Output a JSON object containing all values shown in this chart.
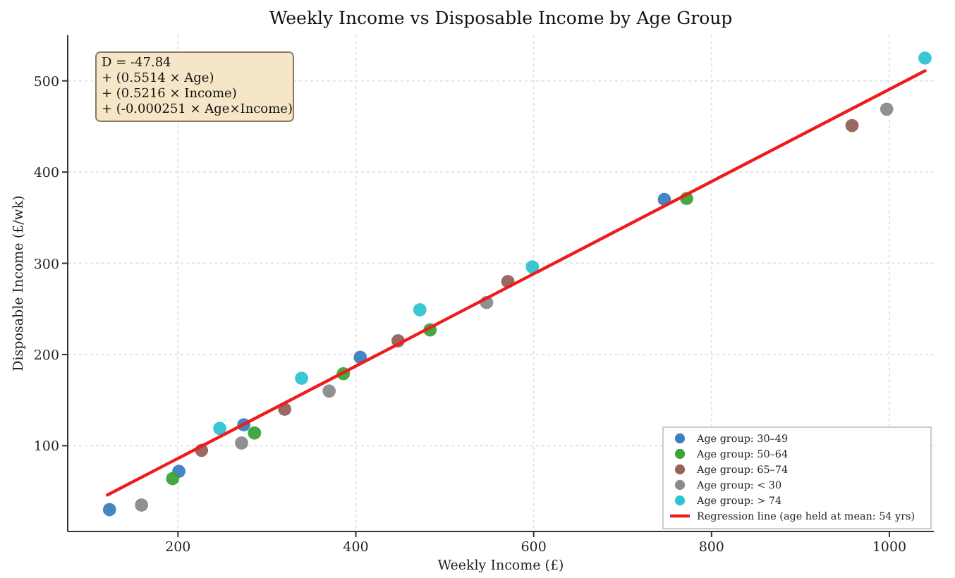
{
  "chart_data": {
    "type": "scatter",
    "title": "Weekly Income vs Disposable Income by Age Group",
    "xlabel": "Weekly Income (£)",
    "ylabel": "Disposable Income (£/wk)",
    "annotations": [
      "D = -47.84",
      "+ (0.5514 × Age)",
      "+ (0.5216 × Income)",
      "+ (-0.000251 × Age×Income)"
    ],
    "xlim": [
      76,
      1050
    ],
    "ylim": [
      6,
      550
    ],
    "xticks": [
      200,
      400,
      600,
      800,
      1000
    ],
    "yticks": [
      100,
      200,
      300,
      400,
      500
    ],
    "grid": true,
    "legend": "bottom right",
    "series": [
      {
        "name": "Age group: 30–49",
        "color": "#3b7fbf",
        "marker": "circle",
        "x": [
          123,
          201,
          274,
          405,
          747
        ],
        "values": [
          30,
          72,
          123,
          197,
          370
        ]
      },
      {
        "name": "Age group: 50–64",
        "color": "#3ca33a",
        "marker": "circle",
        "x": [
          194,
          286,
          386,
          483.5,
          772
        ],
        "values": [
          64,
          114,
          179,
          227,
          371
        ]
      },
      {
        "name": "Age group: 65–74",
        "color": "#94625a",
        "marker": "circle",
        "x": [
          226.5,
          320,
          447.5,
          571,
          958
        ],
        "values": [
          95,
          140,
          215,
          280,
          451
        ]
      },
      {
        "name": "Age group: < 30",
        "color": "#8a8a8a",
        "marker": "circle",
        "x": [
          159,
          271.5,
          370,
          547,
          997
        ],
        "values": [
          35,
          103,
          160,
          257,
          469
        ]
      },
      {
        "name": "Age group: > 74",
        "color": "#2ec4d4",
        "marker": "circle",
        "x": [
          247,
          339,
          472,
          598.5,
          1040
        ],
        "values": [
          119,
          174,
          249,
          296,
          525
        ]
      },
      {
        "name": "Regression line (age held at mean: 54 yrs)",
        "type": "line",
        "color": "#ee1c1c",
        "line_style": "solid",
        "marker": "none",
        "x": [
          120.6,
          1040
        ],
        "values": [
          46,
          511
        ]
      }
    ]
  }
}
